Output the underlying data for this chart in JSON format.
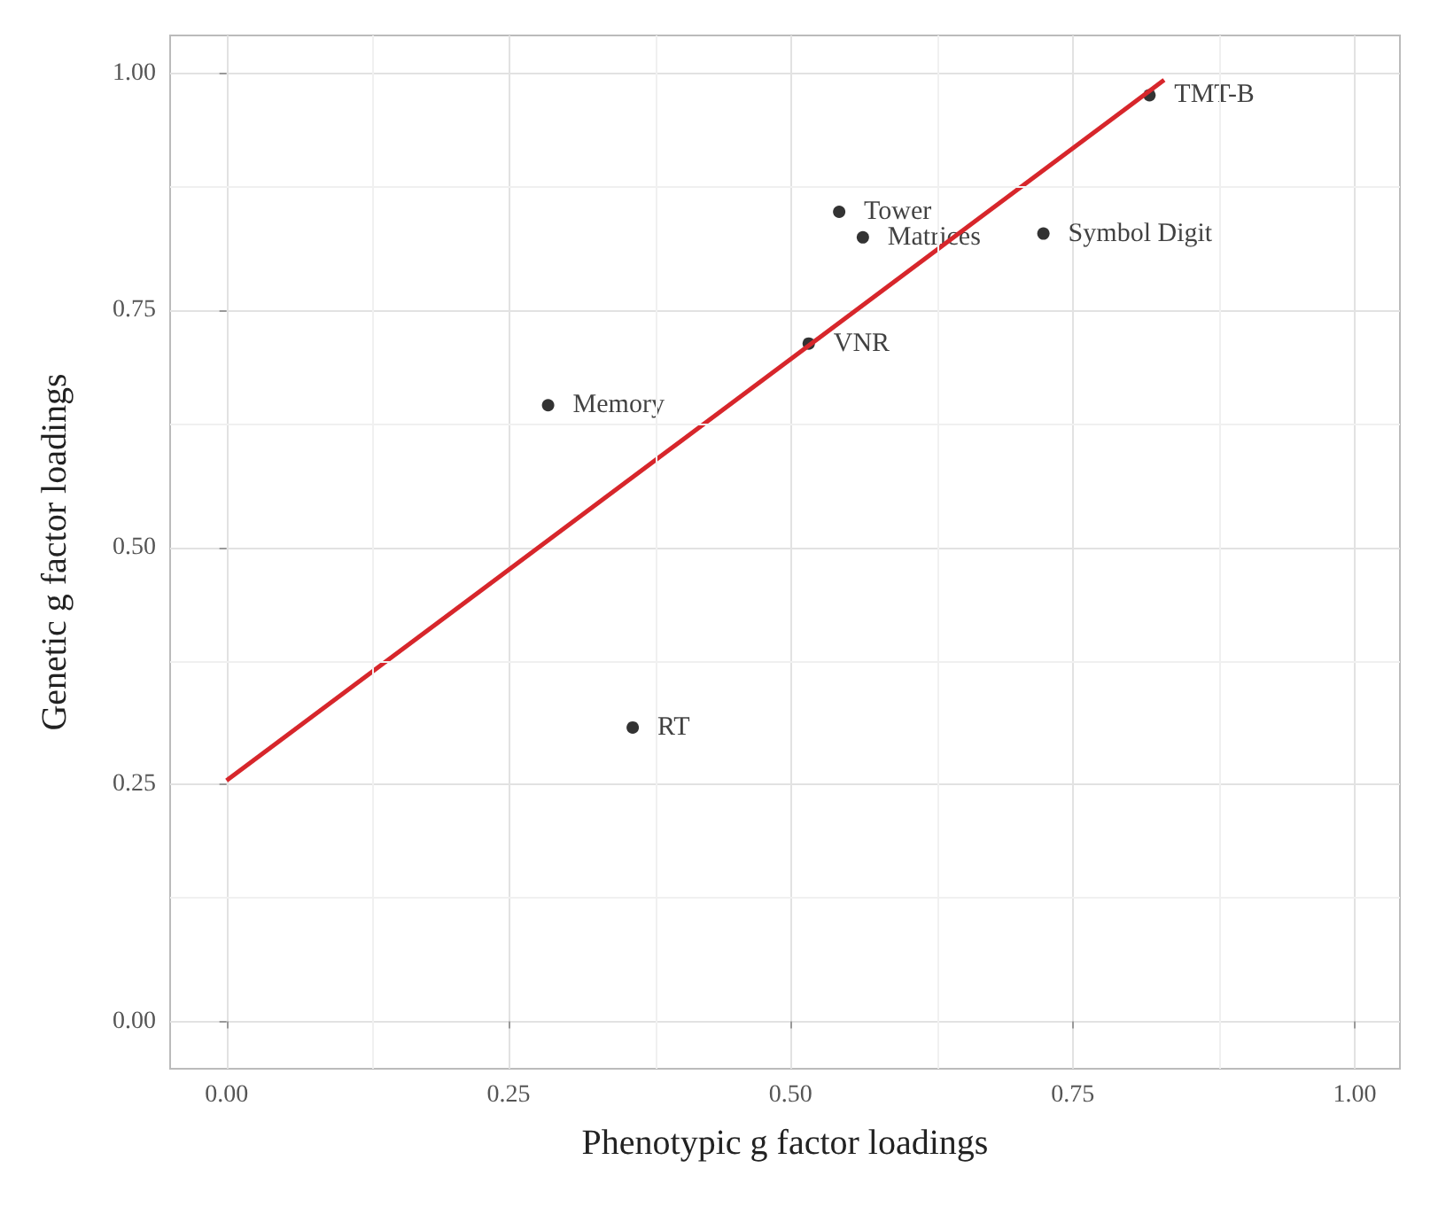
{
  "chart_data": {
    "type": "scatter",
    "xlabel": "Phenotypic g factor loadings",
    "ylabel": "Genetic g factor loadings",
    "xlim": [
      -0.05,
      1.04
    ],
    "ylim": [
      -0.05,
      1.04
    ],
    "xticks": [
      {
        "value": 0,
        "label": "0.00"
      },
      {
        "value": 0.25,
        "label": "0.25"
      },
      {
        "value": 0.5,
        "label": "0.50"
      },
      {
        "value": 0.75,
        "label": "0.75"
      },
      {
        "value": 1,
        "label": "1.00"
      }
    ],
    "yticks": [
      {
        "value": 0,
        "label": "0.00"
      },
      {
        "value": 0.25,
        "label": "0.25"
      },
      {
        "value": 0.5,
        "label": "0.50"
      },
      {
        "value": 0.75,
        "label": "0.75"
      },
      {
        "value": 1,
        "label": "1.00"
      }
    ],
    "grid": true,
    "series": [
      {
        "marker": "circle",
        "color": "#000000",
        "x": [
          0.818,
          0.543,
          0.564,
          0.724,
          0.516,
          0.285,
          0.36
        ],
        "values": [
          0.977,
          0.854,
          0.827,
          0.831,
          0.715,
          0.65,
          0.31
        ]
      },
      {
        "type": "line",
        "marker": "none",
        "color": "#d7262b",
        "x": [
          0,
          0.831
        ],
        "values": [
          0.254,
          0.993
        ]
      }
    ],
    "annotations": [
      {
        "text": "TMT-B",
        "x": 0.818,
        "y": 0.977
      },
      {
        "text": "Tower",
        "x": 0.543,
        "y": 0.854
      },
      {
        "text": "Matrices",
        "x": 0.564,
        "y": 0.827
      },
      {
        "text": "Symbol Digit",
        "x": 0.724,
        "y": 0.831
      },
      {
        "text": "VNR",
        "x": 0.516,
        "y": 0.715
      },
      {
        "text": "Memory",
        "x": 0.285,
        "y": 0.65
      },
      {
        "text": "RT",
        "x": 0.36,
        "y": 0.31
      }
    ]
  }
}
